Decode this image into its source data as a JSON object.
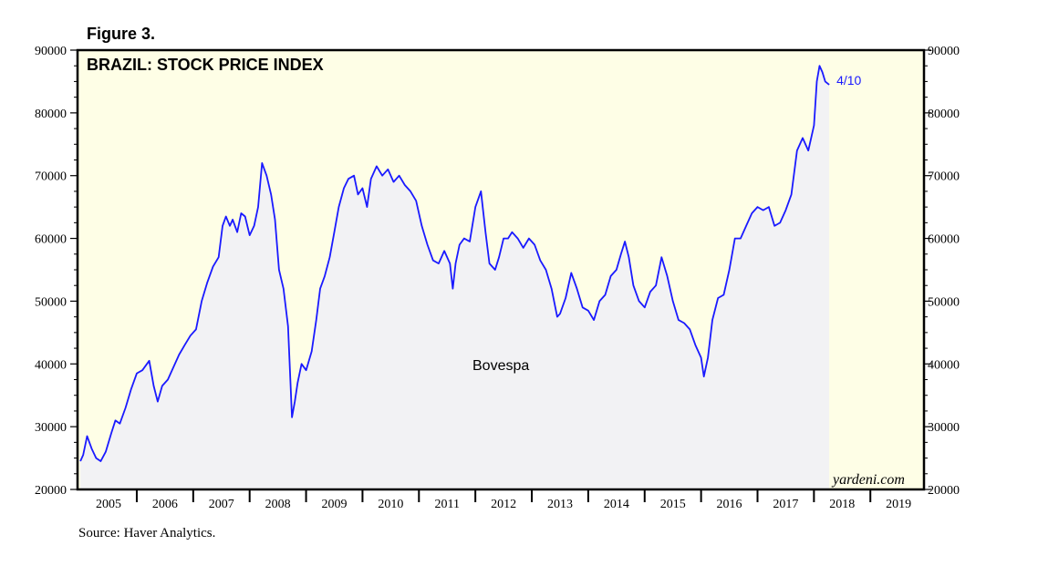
{
  "figure_label": "Figure 3.",
  "source": "Source: Haver Analytics.",
  "colors": {
    "plot_bg": "#fefee6",
    "area_fill": "#f2f2f4",
    "line": "#1a1aff",
    "axis": "#000000"
  },
  "chart_data": {
    "type": "line",
    "title": "BRAZIL: STOCK PRICE INDEX",
    "series_label": "Bovespa",
    "end_label": "4/10",
    "credit": "yardeni.com",
    "xlim": [
      2004.95,
      2019.95
    ],
    "ylim": [
      20000,
      90000
    ],
    "y_ticks": [
      20000,
      30000,
      40000,
      50000,
      60000,
      70000,
      80000,
      90000
    ],
    "y_tick_labels": [
      "20000",
      "30000",
      "40000",
      "50000",
      "60000",
      "70000",
      "80000",
      "90000"
    ],
    "x_year_labels": [
      "2005",
      "2006",
      "2007",
      "2008",
      "2009",
      "2010",
      "2011",
      "2012",
      "2013",
      "2014",
      "2015",
      "2016",
      "2017",
      "2018",
      "2019"
    ],
    "forecast_shading_from": 2018.27,
    "series": [
      {
        "name": "Bovespa",
        "x": [
          2005.0,
          2005.05,
          2005.12,
          2005.2,
          2005.28,
          2005.36,
          2005.45,
          2005.55,
          2005.62,
          2005.7,
          2005.8,
          2005.9,
          2006.0,
          2006.1,
          2006.22,
          2006.3,
          2006.37,
          2006.45,
          2006.55,
          2006.65,
          2006.75,
          2006.85,
          2006.95,
          2007.05,
          2007.15,
          2007.25,
          2007.35,
          2007.45,
          2007.52,
          2007.58,
          2007.65,
          2007.7,
          2007.78,
          2007.85,
          2007.92,
          2008.0,
          2008.08,
          2008.15,
          2008.22,
          2008.3,
          2008.38,
          2008.45,
          2008.52,
          2008.6,
          2008.68,
          2008.75,
          2008.8,
          2008.85,
          2008.92,
          2009.0,
          2009.1,
          2009.18,
          2009.25,
          2009.33,
          2009.42,
          2009.5,
          2009.58,
          2009.67,
          2009.75,
          2009.85,
          2009.92,
          2010.0,
          2010.08,
          2010.15,
          2010.25,
          2010.35,
          2010.45,
          2010.55,
          2010.65,
          2010.75,
          2010.85,
          2010.95,
          2011.05,
          2011.15,
          2011.25,
          2011.35,
          2011.45,
          2011.55,
          2011.6,
          2011.65,
          2011.72,
          2011.8,
          2011.9,
          2012.0,
          2012.1,
          2012.18,
          2012.25,
          2012.35,
          2012.42,
          2012.5,
          2012.58,
          2012.65,
          2012.75,
          2012.85,
          2012.95,
          2013.05,
          2013.15,
          2013.25,
          2013.35,
          2013.45,
          2013.5,
          2013.6,
          2013.7,
          2013.8,
          2013.9,
          2014.0,
          2014.1,
          2014.2,
          2014.3,
          2014.4,
          2014.5,
          2014.58,
          2014.65,
          2014.72,
          2014.8,
          2014.9,
          2015.0,
          2015.1,
          2015.2,
          2015.3,
          2015.4,
          2015.5,
          2015.6,
          2015.7,
          2015.8,
          2015.9,
          2016.0,
          2016.05,
          2016.12,
          2016.2,
          2016.3,
          2016.4,
          2016.5,
          2016.6,
          2016.7,
          2016.8,
          2016.9,
          2017.0,
          2017.1,
          2017.2,
          2017.3,
          2017.4,
          2017.5,
          2017.6,
          2017.7,
          2017.8,
          2017.9,
          2018.0,
          2018.05,
          2018.1,
          2018.15,
          2018.2,
          2018.27
        ],
        "values": [
          24500,
          25500,
          28500,
          26500,
          25000,
          24500,
          26000,
          29000,
          31000,
          30500,
          33000,
          36000,
          38500,
          39000,
          40500,
          36500,
          34000,
          36500,
          37500,
          39500,
          41500,
          43000,
          44500,
          45500,
          50000,
          53000,
          55500,
          57000,
          62000,
          63500,
          62000,
          63000,
          61000,
          64000,
          63500,
          60500,
          62000,
          65000,
          72000,
          70000,
          67000,
          63000,
          55000,
          52000,
          46000,
          31500,
          34000,
          37000,
          40000,
          39000,
          42000,
          47000,
          52000,
          54000,
          57000,
          61000,
          65000,
          68000,
          69500,
          70000,
          67000,
          68000,
          65000,
          69500,
          71500,
          70000,
          71000,
          69000,
          70000,
          68500,
          67500,
          66000,
          62000,
          59000,
          56500,
          56000,
          58000,
          56000,
          52000,
          56000,
          59000,
          60000,
          59500,
          65000,
          67500,
          61000,
          56000,
          55000,
          57000,
          60000,
          60000,
          61000,
          60000,
          58500,
          60000,
          59000,
          56500,
          55000,
          52000,
          47500,
          48000,
          50500,
          54500,
          52000,
          49000,
          48500,
          47000,
          50000,
          51000,
          54000,
          55000,
          57500,
          59500,
          57000,
          52500,
          50000,
          49000,
          51500,
          52500,
          57000,
          54000,
          50000,
          47000,
          46500,
          45500,
          43000,
          41000,
          38000,
          41000,
          47000,
          50500,
          51000,
          55000,
          60000,
          60000,
          62000,
          64000,
          65000,
          64500,
          65000,
          62000,
          62500,
          64500,
          67000,
          74000,
          76000,
          74000,
          78000,
          85000,
          87500,
          86500,
          85000,
          84500
        ]
      }
    ]
  }
}
